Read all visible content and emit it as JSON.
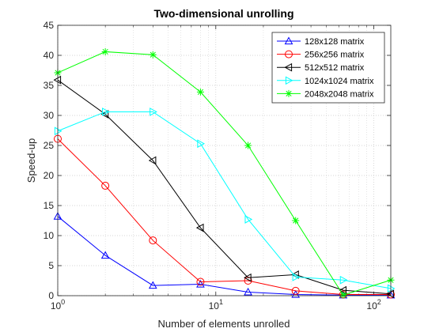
{
  "chart_data": {
    "type": "line",
    "title": "Two-dimensional unrolling",
    "xlabel": "Number of elements unrolled",
    "ylabel": "Speed-up",
    "x_scale": "log",
    "xlim": [
      1,
      128
    ],
    "ylim": [
      0,
      45
    ],
    "x_ticks": [
      {
        "value": 1,
        "base": "10",
        "exp": "0"
      },
      {
        "value": 10,
        "base": "10",
        "exp": "1"
      },
      {
        "value": 100,
        "base": "10",
        "exp": "2"
      }
    ],
    "y_ticks": [
      0,
      5,
      10,
      15,
      20,
      25,
      30,
      35,
      40,
      45
    ],
    "grid": true,
    "legend_position": "top-right",
    "x": [
      1,
      2,
      4,
      8,
      16,
      32,
      64,
      128
    ],
    "series": [
      {
        "name": "128x128 matrix",
        "color": "#0000ff",
        "marker": "triangle-up",
        "values": [
          13.2,
          6.7,
          1.7,
          1.9,
          0.6,
          0.2,
          0.1,
          0.1
        ]
      },
      {
        "name": "256x256 matrix",
        "color": "#ff0000",
        "marker": "circle",
        "values": [
          26.1,
          18.3,
          9.2,
          2.3,
          2.5,
          0.8,
          0.2,
          0.2
        ]
      },
      {
        "name": "512x512 matrix",
        "color": "#000000",
        "marker": "triangle-left",
        "values": [
          35.9,
          30.2,
          22.5,
          11.3,
          3.0,
          3.5,
          0.9,
          0.3
        ]
      },
      {
        "name": "1024x1024 matrix",
        "color": "#00ffff",
        "marker": "triangle-right",
        "values": [
          27.4,
          30.6,
          30.6,
          25.3,
          12.7,
          3.1,
          2.6,
          1.2
        ]
      },
      {
        "name": "2048x2048 matrix",
        "color": "#00ff00",
        "marker": "asterisk",
        "values": [
          37.1,
          40.6,
          40.1,
          33.9,
          25.0,
          12.5,
          0.1,
          2.6
        ]
      }
    ]
  }
}
